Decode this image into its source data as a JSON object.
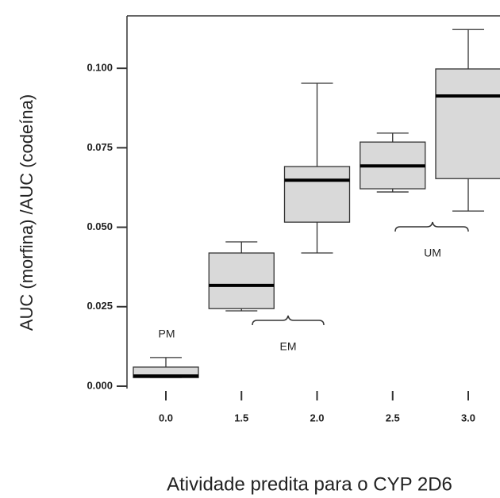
{
  "chart_data": {
    "type": "box",
    "y_label": "AUC (morfina) /AUC (codeína)",
    "x_label": "Atividade predita para o CYP 2D6",
    "categories": [
      "0.0",
      "1.5",
      "2.0",
      "2.5",
      "3.0"
    ],
    "boxes": [
      {
        "min": 0.0027,
        "q1": 0.0027,
        "median": 0.0032,
        "q3": 0.006,
        "max": 0.009
      },
      {
        "min": 0.0237,
        "q1": 0.0244,
        "median": 0.0317,
        "q3": 0.0419,
        "max": 0.0454
      },
      {
        "min": 0.0419,
        "q1": 0.0516,
        "median": 0.0648,
        "q3": 0.0691,
        "max": 0.0953
      },
      {
        "min": 0.0611,
        "q1": 0.0621,
        "median": 0.0693,
        "q3": 0.0768,
        "max": 0.0796
      },
      {
        "min": 0.0551,
        "q1": 0.0653,
        "median": 0.0913,
        "q3": 0.0998,
        "max": 0.1122
      }
    ],
    "color": "#d9d9d9",
    "ylim": [
      -0.002,
      0.1165
    ],
    "yticks": [
      {
        "value": 0,
        "label": "0.000"
      },
      {
        "value": 0.025,
        "label": "0.025"
      },
      {
        "value": 0.05,
        "label": "0.050"
      },
      {
        "value": 0.075,
        "label": "0.075"
      },
      {
        "value": 0.1,
        "label": "0.100"
      }
    ],
    "annotations": [
      "PM",
      "EM",
      "UM"
    ]
  }
}
